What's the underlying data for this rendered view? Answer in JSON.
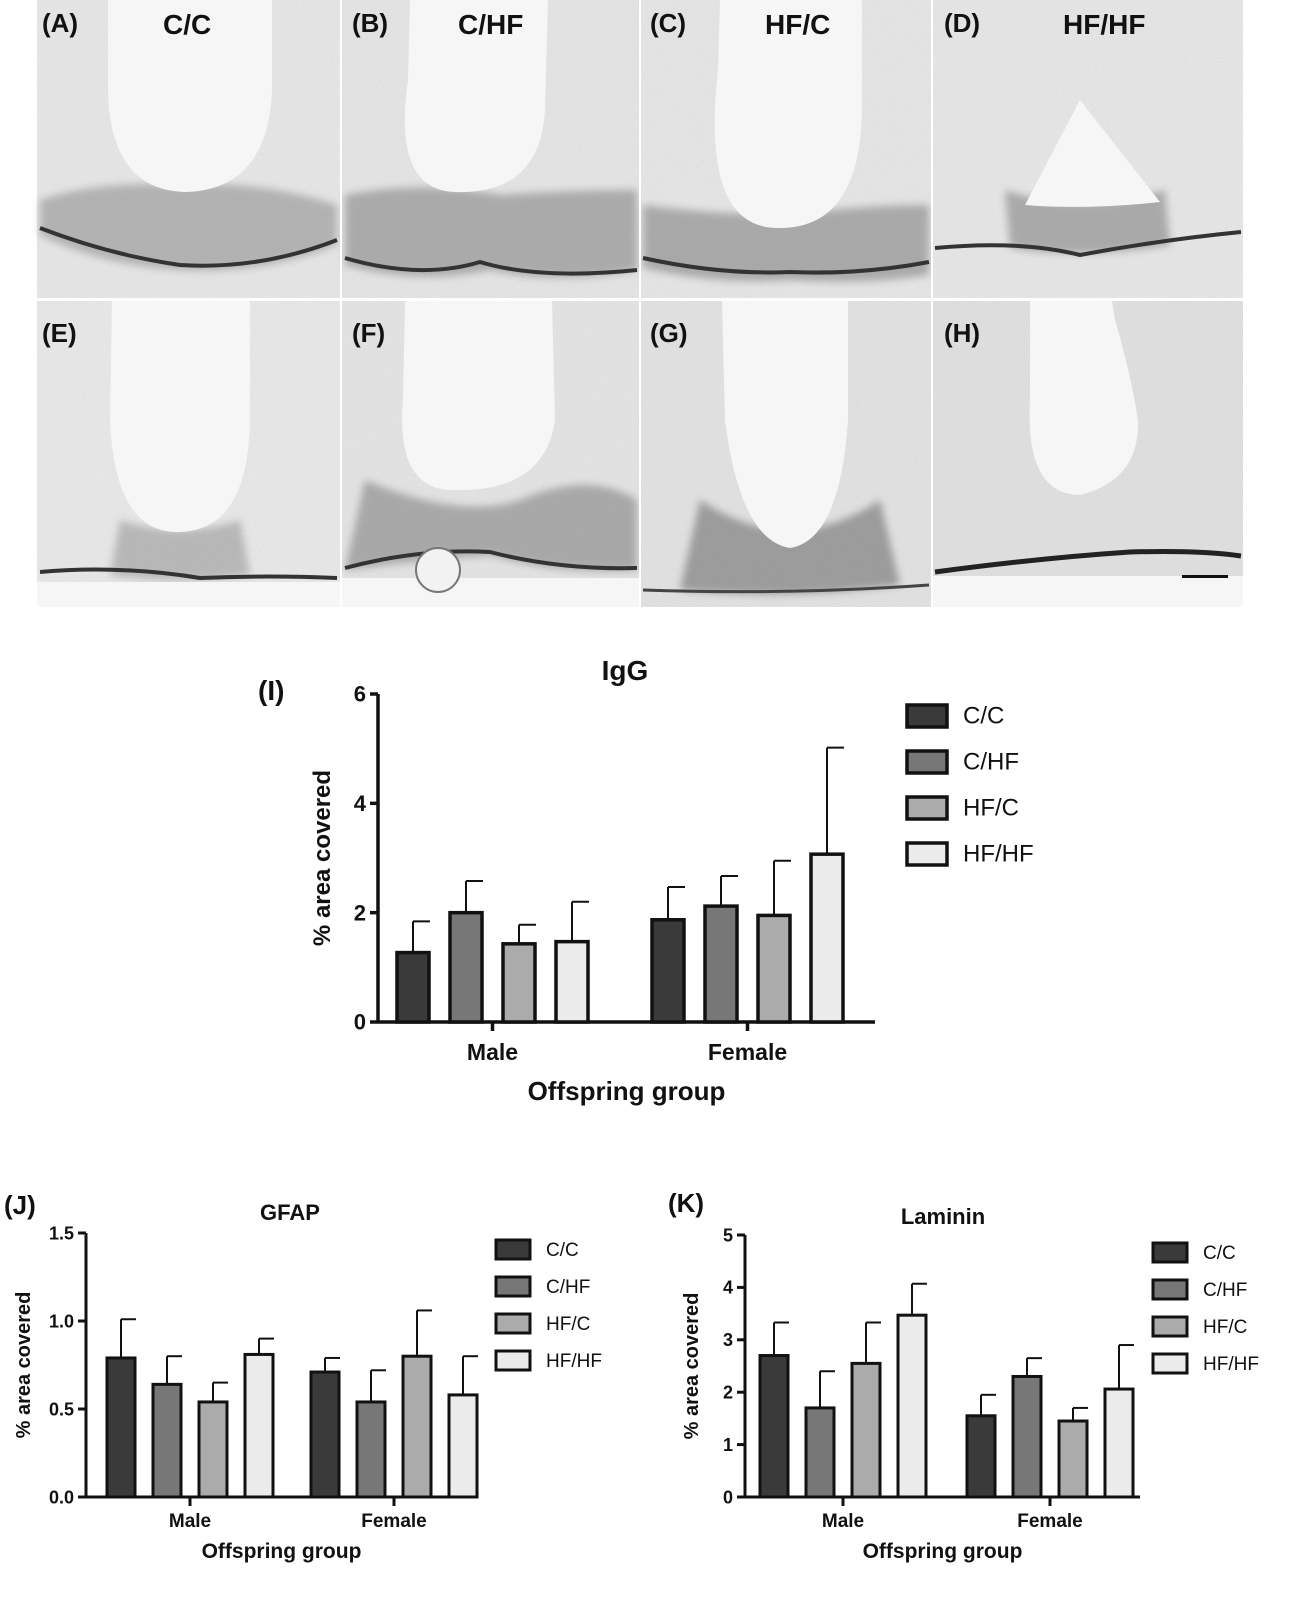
{
  "micrographs": {
    "panels": [
      {
        "label": "(A)",
        "condition": "C/C"
      },
      {
        "label": "(B)",
        "condition": "C/HF"
      },
      {
        "label": "(C)",
        "condition": "HF/C"
      },
      {
        "label": "(D)",
        "condition": "HF/HF"
      },
      {
        "label": "(E)",
        "condition": ""
      },
      {
        "label": "(F)",
        "condition": ""
      },
      {
        "label": "(G)",
        "condition": ""
      },
      {
        "label": "(H)",
        "condition": ""
      }
    ]
  },
  "colors": {
    "C/C": "#3a3a3a",
    "C/HF": "#777777",
    "HF/C": "#ababab",
    "HF/HF": "#ebebeb",
    "tissue": "#e9e9e9",
    "lumen": "#f6f6f6",
    "stain": "#4a4a4a"
  },
  "chart_data": [
    {
      "panel_label": "(I)",
      "type": "bar",
      "title": "IgG",
      "xlabel": "Offspring group",
      "ylabel": "% area covered",
      "categories": [
        "Male",
        "Female"
      ],
      "ylim": [
        0,
        6
      ],
      "yticks": [
        "0",
        "2",
        "4",
        "6"
      ],
      "legend_position": "right",
      "series": [
        {
          "name": "C/C",
          "values": [
            1.27,
            1.87
          ],
          "errors": [
            0.57,
            0.6
          ]
        },
        {
          "name": "C/HF",
          "values": [
            2.0,
            2.12
          ],
          "errors": [
            0.58,
            0.55
          ]
        },
        {
          "name": "HF/C",
          "values": [
            1.43,
            1.95
          ],
          "errors": [
            0.35,
            1.0
          ]
        },
        {
          "name": "HF/HF",
          "values": [
            1.47,
            3.07
          ],
          "errors": [
            0.73,
            1.95
          ]
        }
      ]
    },
    {
      "panel_label": "(J)",
      "type": "bar",
      "title": "GFAP",
      "xlabel": "Offspring group",
      "ylabel": "% area covered",
      "categories": [
        "Male",
        "Female"
      ],
      "ylim": [
        0,
        1.5
      ],
      "yticks": [
        "0.0",
        "0.5",
        "1.0",
        "1.5"
      ],
      "legend_position": "right",
      "series": [
        {
          "name": "C/C",
          "values": [
            0.79,
            0.71
          ],
          "errors": [
            0.22,
            0.08
          ]
        },
        {
          "name": "C/HF",
          "values": [
            0.64,
            0.54
          ],
          "errors": [
            0.16,
            0.18
          ]
        },
        {
          "name": "HF/C",
          "values": [
            0.54,
            0.8
          ],
          "errors": [
            0.11,
            0.26
          ]
        },
        {
          "name": "HF/HF",
          "values": [
            0.81,
            0.58
          ],
          "errors": [
            0.09,
            0.22
          ]
        }
      ]
    },
    {
      "panel_label": "(K)",
      "type": "bar",
      "title": "Laminin",
      "xlabel": "Offspring group",
      "ylabel": "% area covered",
      "categories": [
        "Male",
        "Female"
      ],
      "ylim": [
        0,
        5
      ],
      "yticks": [
        "0",
        "1",
        "2",
        "3",
        "4",
        "5"
      ],
      "legend_position": "right",
      "series": [
        {
          "name": "C/C",
          "values": [
            2.7,
            1.55
          ],
          "errors": [
            0.63,
            0.4
          ]
        },
        {
          "name": "C/HF",
          "values": [
            1.7,
            2.3
          ],
          "errors": [
            0.7,
            0.35
          ]
        },
        {
          "name": "HF/C",
          "values": [
            2.55,
            1.45
          ],
          "errors": [
            0.78,
            0.25
          ]
        },
        {
          "name": "HF/HF",
          "values": [
            3.47,
            2.06
          ],
          "errors": [
            0.6,
            0.84
          ]
        }
      ]
    }
  ]
}
